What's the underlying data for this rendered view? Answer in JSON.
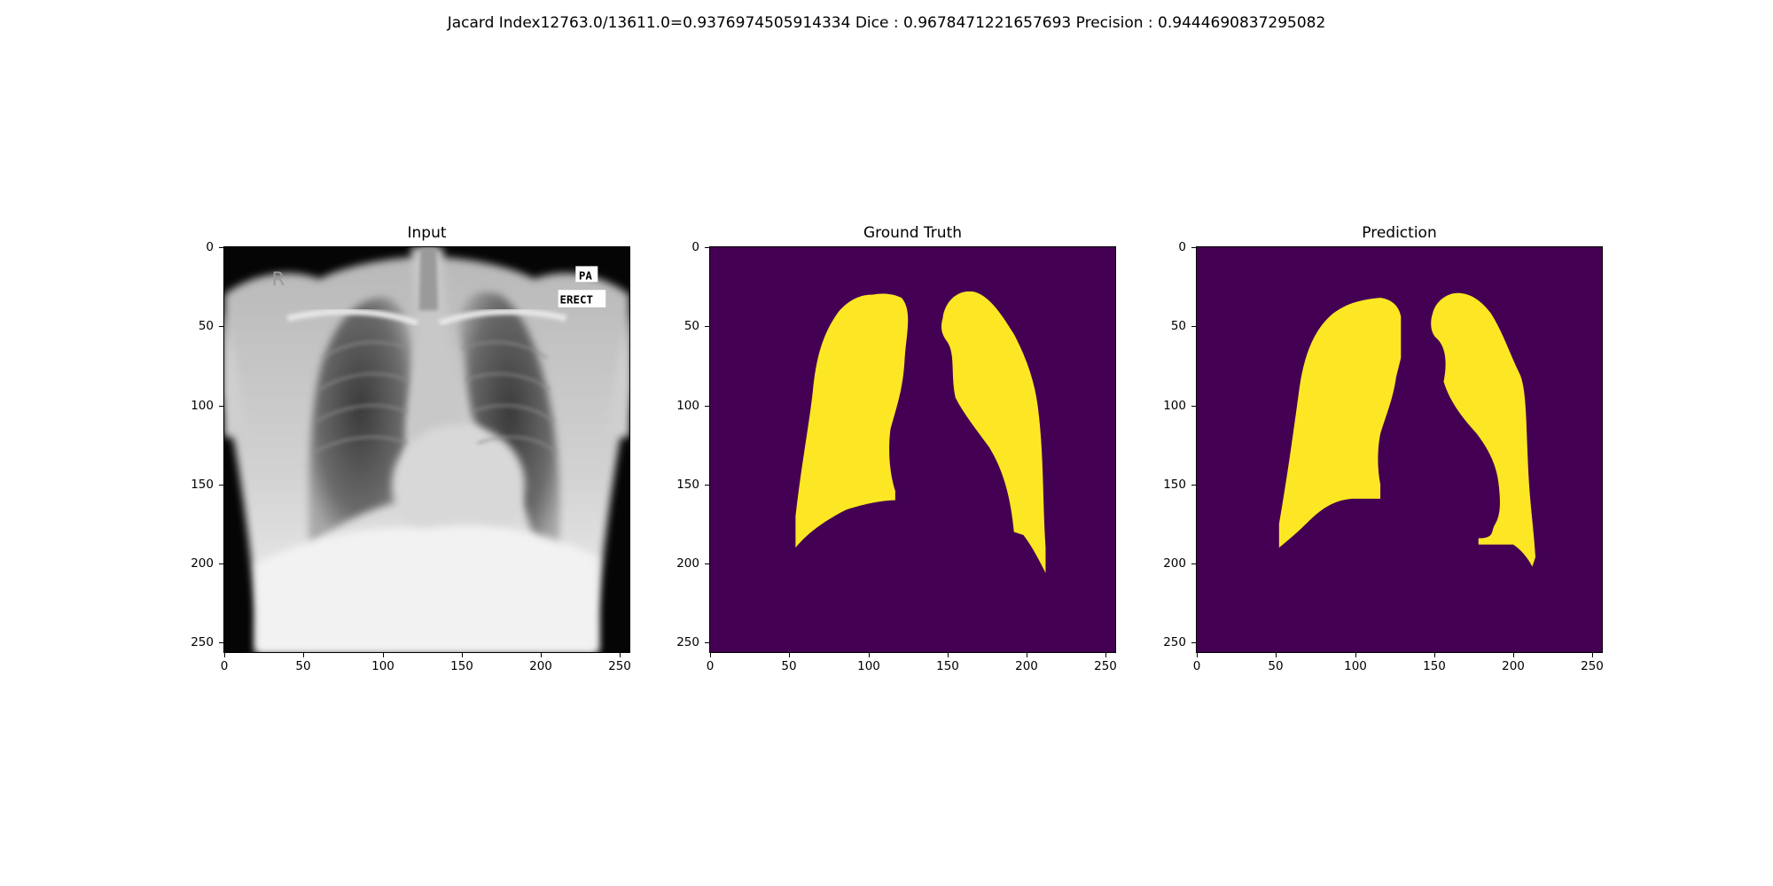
{
  "figure": {
    "suptitle": "Jacard Index12763.0/13611.0=0.9376974505914334 Dice : 0.9678471221657693 Precision : 0.9444690837295082"
  },
  "panels": [
    {
      "title": "Input",
      "overlay": {
        "top": "PA",
        "bottom": "ERECT",
        "marker": "R"
      }
    },
    {
      "title": "Ground Truth"
    },
    {
      "title": "Prediction"
    }
  ],
  "axes": {
    "x_ticks": [
      "0",
      "50",
      "100",
      "150",
      "200",
      "250"
    ],
    "y_ticks": [
      "0",
      "50",
      "100",
      "150",
      "200",
      "250"
    ],
    "xlim": [
      0,
      256
    ],
    "ylim": [
      256,
      0
    ]
  },
  "colors": {
    "mask_background": "#440154",
    "mask_foreground": "#fde725"
  }
}
